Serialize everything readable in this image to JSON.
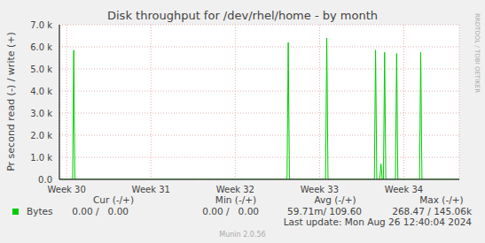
{
  "chart_data": {
    "type": "line",
    "title": "Disk throughput for /dev/rhel/home - by month",
    "y_label": "Pr second read (-) / write (+)",
    "side_text": "RRDTOOL / TOBI OETIKER",
    "x": [
      -0.6,
      0.5,
      0.59,
      0.68,
      18.3,
      18.4,
      18.5,
      21.5,
      21.6,
      21.7,
      25.55,
      25.65,
      25.75,
      26.0,
      26.1,
      26.2,
      26.3,
      26.4,
      26.5,
      27.3,
      27.4,
      27.5,
      29.3,
      29.4,
      29.5,
      32.6
    ],
    "series": [
      {
        "name": "Bytes",
        "color": "#00cc00",
        "values": [
          0,
          0,
          5850,
          0,
          0,
          6200,
          0,
          0,
          6400,
          0,
          0,
          5850,
          0,
          0,
          700,
          0,
          0,
          5750,
          0,
          0,
          5700,
          0,
          0,
          5750,
          0,
          0
        ]
      }
    ],
    "xlim": [
      -0.6,
      32.6
    ],
    "xticks": [
      {
        "value": 0,
        "label": "Week 30"
      },
      {
        "value": 7,
        "label": "Week 31"
      },
      {
        "value": 14,
        "label": "Week 32"
      },
      {
        "value": 21,
        "label": "Week 33"
      },
      {
        "value": 28,
        "label": "Week 34"
      }
    ],
    "ylim": [
      0,
      7000
    ],
    "yticks": [
      {
        "value": 0,
        "label": "0.0"
      },
      {
        "value": 1000,
        "label": "1.0 k"
      },
      {
        "value": 2000,
        "label": "2.0 k"
      },
      {
        "value": 3000,
        "label": "3.0 k"
      },
      {
        "value": 4000,
        "label": "4.0 k"
      },
      {
        "value": 5000,
        "label": "5.0 k"
      },
      {
        "value": 6000,
        "label": "6.0 k"
      },
      {
        "value": 7000,
        "label": "7.0 k"
      }
    ],
    "grid": true,
    "legend_table": {
      "columns": [
        "Cur (-/+)",
        "Min (-/+)",
        "Avg (-/+)",
        "Max (-/+)"
      ],
      "rows": [
        {
          "name": "Bytes",
          "cells": [
            "0.00 /   0.00",
            "0.00 /   0.00",
            "59.71m/ 109.60",
            "268.47 / 145.06k"
          ]
        }
      ]
    },
    "last_update": "Last update: Mon Aug 26 12:40:04 2024",
    "footer": "Munin 2.0.56"
  }
}
